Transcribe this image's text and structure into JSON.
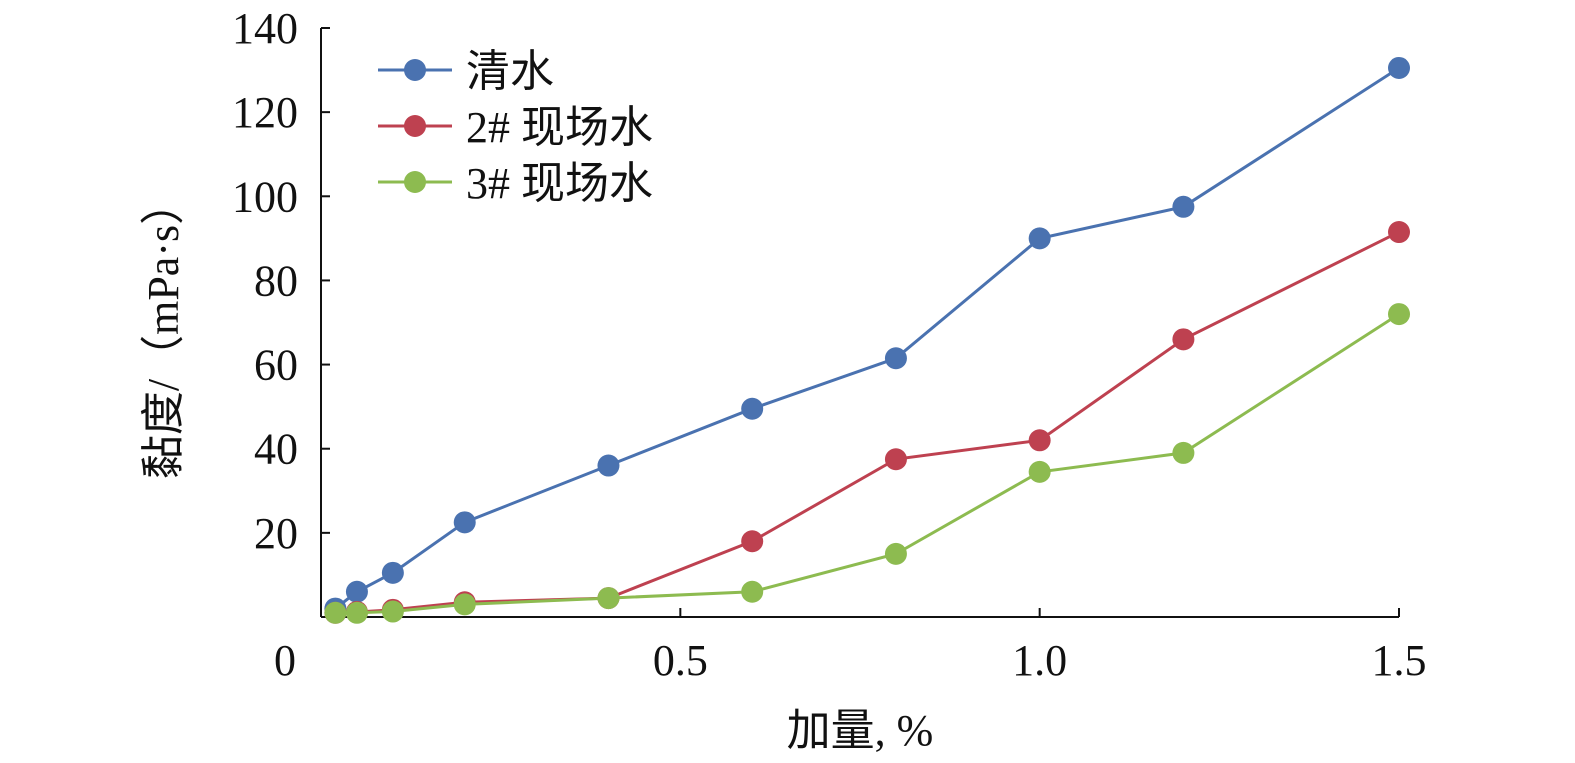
{
  "chart_data": {
    "type": "line",
    "xlabel": "加量, %",
    "ylabel": "黏度/（mPa·s）",
    "xlim": [
      0,
      1.5
    ],
    "ylim": [
      0,
      140
    ],
    "xticks": [
      0,
      0.5,
      1.0,
      1.5
    ],
    "xtick_labels": [
      "0",
      "0.5",
      "1.0",
      "1.5"
    ],
    "yticks": [
      20,
      40,
      60,
      80,
      100,
      120,
      140
    ],
    "ytick_labels": [
      "20",
      "40",
      "60",
      "80",
      "100",
      "120",
      "140"
    ],
    "legend_position": "top-left",
    "grid": false,
    "series": [
      {
        "name": "清水",
        "color": "#4A72B0",
        "x": [
          0.02,
          0.05,
          0.1,
          0.2,
          0.4,
          0.6,
          0.8,
          1.0,
          1.2,
          1.5
        ],
        "y": [
          2,
          6,
          10.5,
          22.5,
          36,
          49.5,
          61.5,
          90,
          97.5,
          130.5
        ]
      },
      {
        "name": "2# 现场水",
        "color": "#BE4150",
        "x": [
          0.02,
          0.05,
          0.1,
          0.2,
          0.4,
          0.6,
          0.8,
          1.0,
          1.2,
          1.5
        ],
        "y": [
          1,
          1.2,
          1.7,
          3.5,
          4.5,
          18,
          37.5,
          42,
          66,
          91.5
        ]
      },
      {
        "name": "3# 现场水",
        "color": "#8DBB50",
        "x": [
          0.02,
          0.05,
          0.1,
          0.2,
          0.4,
          0.6,
          0.8,
          1.0,
          1.2,
          1.5
        ],
        "y": [
          1,
          1,
          1.3,
          3,
          4.5,
          6,
          15,
          34.5,
          39,
          72
        ]
      }
    ]
  }
}
